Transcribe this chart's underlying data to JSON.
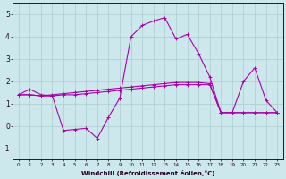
{
  "xlabel": "Windchill (Refroidissement éolien,°C)",
  "background_color": "#cce8ec",
  "grid_color": "#aacccc",
  "line_color": "#aa00aa",
  "x_ticks": [
    0,
    1,
    2,
    3,
    4,
    5,
    6,
    7,
    8,
    9,
    10,
    11,
    12,
    13,
    14,
    15,
    16,
    17,
    18,
    19,
    20,
    21,
    22,
    23
  ],
  "ylim": [
    -1.5,
    5.5
  ],
  "yticks": [
    -1,
    0,
    1,
    2,
    3,
    4,
    5
  ],
  "line1_y": [
    1.4,
    1.65,
    1.4,
    1.35,
    -0.2,
    -0.15,
    -0.1,
    -0.55,
    0.4,
    1.25,
    4.0,
    4.5,
    4.7,
    4.85,
    3.9,
    4.1,
    3.25,
    2.2,
    0.6,
    0.6,
    2.0,
    2.6,
    1.15,
    0.6
  ],
  "line2_y": [
    1.4,
    1.4,
    1.35,
    1.4,
    1.45,
    1.5,
    1.55,
    1.6,
    1.65,
    1.7,
    1.75,
    1.8,
    1.85,
    1.9,
    1.95,
    1.95,
    1.95,
    1.9,
    0.6,
    0.6,
    0.6,
    0.6,
    0.6,
    0.6
  ],
  "line3_y": [
    1.4,
    1.4,
    1.35,
    1.35,
    1.4,
    1.4,
    1.45,
    1.5,
    1.55,
    1.6,
    1.65,
    1.7,
    1.75,
    1.8,
    1.85,
    1.85,
    1.85,
    1.85,
    0.6,
    0.6,
    0.6,
    0.6,
    0.6,
    0.6
  ]
}
